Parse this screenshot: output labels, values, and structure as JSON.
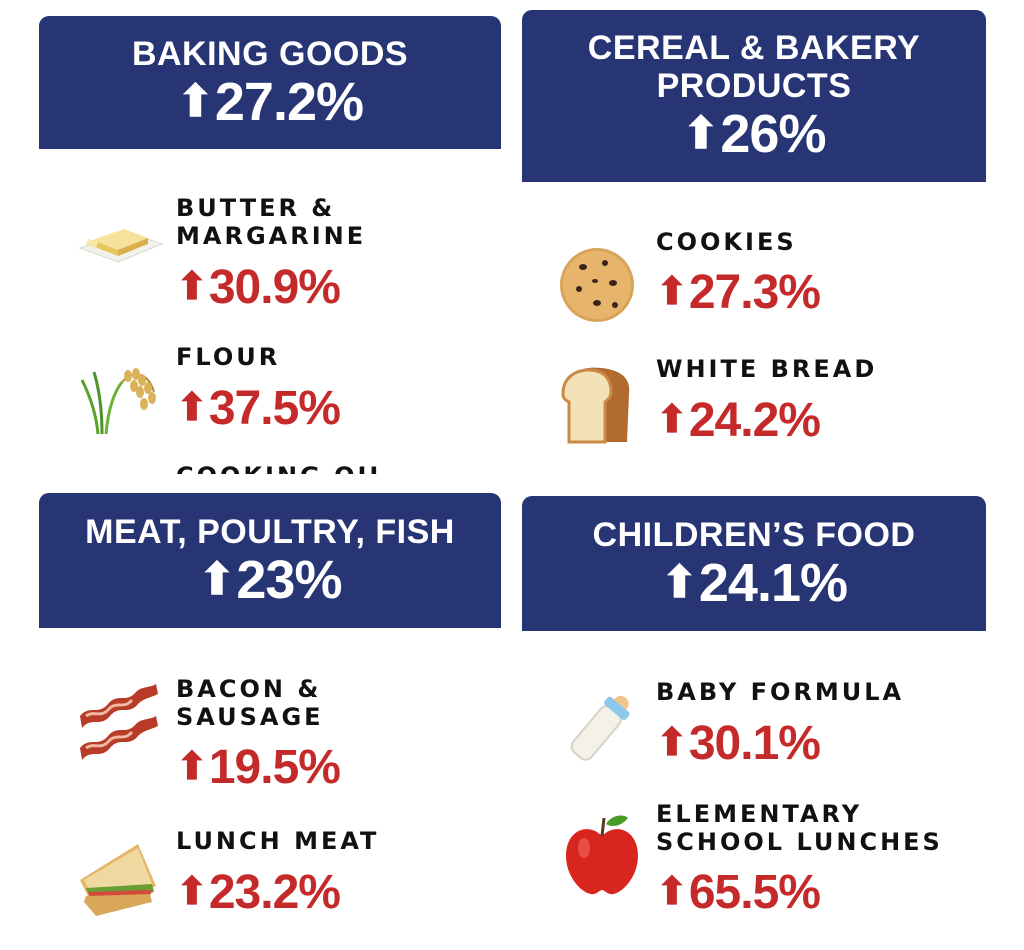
{
  "colors": {
    "banner_bg": "#283574",
    "up_red": "#c42a2a",
    "text": "#111111"
  },
  "arrow": "⬆",
  "categories": [
    {
      "title": "BAKING GOODS",
      "change": "27.2%",
      "items": [
        {
          "label": "BUTTER & MARGARINE",
          "change": "30.9%",
          "icon": "butter-icon"
        },
        {
          "label": "FLOUR",
          "change": "37.5%",
          "icon": "rice-plant-icon"
        },
        {
          "label": "COOKING OIL",
          "icon": "cut-off"
        }
      ]
    },
    {
      "title": "CEREAL & BAKERY PRODUCTS",
      "change": "26%",
      "items": [
        {
          "label": "COOKIES",
          "change": "27.3%",
          "icon": "cookie-icon"
        },
        {
          "label": "WHITE BREAD",
          "change": "24.2%",
          "icon": "bread-icon"
        }
      ]
    },
    {
      "title": "MEAT, POULTRY, FISH",
      "change": "23%",
      "items": [
        {
          "label": "BACON & SAUSAGE",
          "change": "19.5%",
          "icon": "bacon-icon"
        },
        {
          "label": "LUNCH MEAT",
          "change": "23.2%",
          "icon": "sandwich-icon"
        }
      ]
    },
    {
      "title": "CHILDREN’S FOOD",
      "change": "24.1%",
      "items": [
        {
          "label": "BABY FORMULA",
          "change": "30.1%",
          "icon": "baby-bottle-icon"
        },
        {
          "label": "ELEMENTARY SCHOOL LUNCHES",
          "change": "65.5%",
          "icon": "apple-icon"
        }
      ]
    }
  ]
}
